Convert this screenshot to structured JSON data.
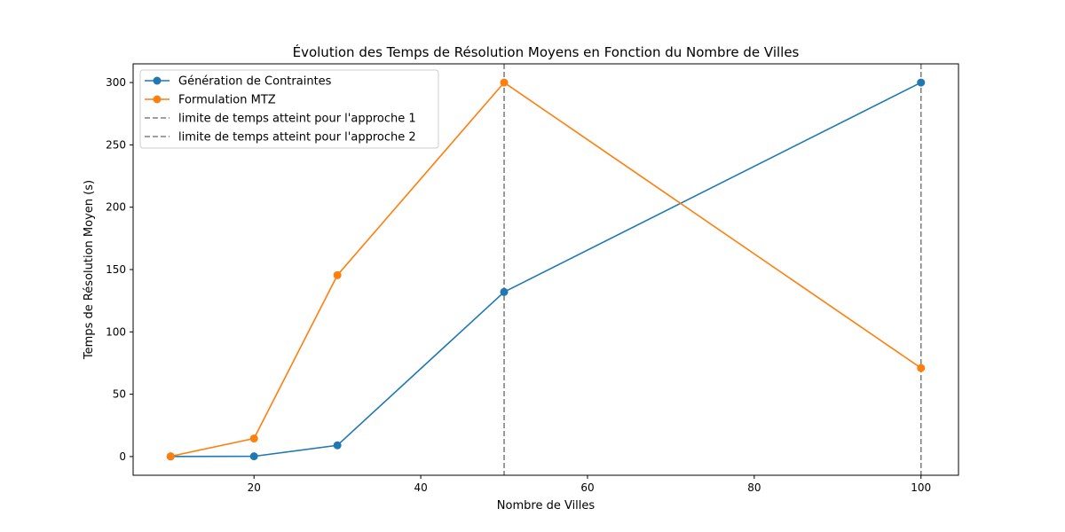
{
  "chart_data": {
    "type": "line",
    "title": "Évolution des Temps de Résolution Moyens en Fonction du Nombre de Villes",
    "xlabel": "Nombre de Villes",
    "ylabel": "Temps de Résolution Moyen (s)",
    "x": [
      10,
      20,
      30,
      50,
      100
    ],
    "xlim": [
      5.5,
      104.5
    ],
    "ylim": [
      -15,
      315
    ],
    "xticks": [
      20,
      40,
      60,
      80,
      100
    ],
    "yticks": [
      0,
      50,
      100,
      150,
      200,
      250,
      300
    ],
    "grid": false,
    "legend_position": "top-left",
    "series": [
      {
        "name": "Génération de Contraintes",
        "color": "#1f77b4",
        "values": [
          0.1,
          0.2,
          9,
          132,
          300
        ]
      },
      {
        "name": "Formulation MTZ",
        "color": "#ff7f0e",
        "values": [
          0.2,
          14.5,
          145.5,
          300,
          71
        ]
      }
    ],
    "vlines": [
      {
        "x": 50,
        "name": "limite de temps atteint pour l'approche 1",
        "color": "#808080"
      },
      {
        "x": 100,
        "name": "limite de temps atteint pour l'approche 2",
        "color": "#808080"
      }
    ]
  }
}
